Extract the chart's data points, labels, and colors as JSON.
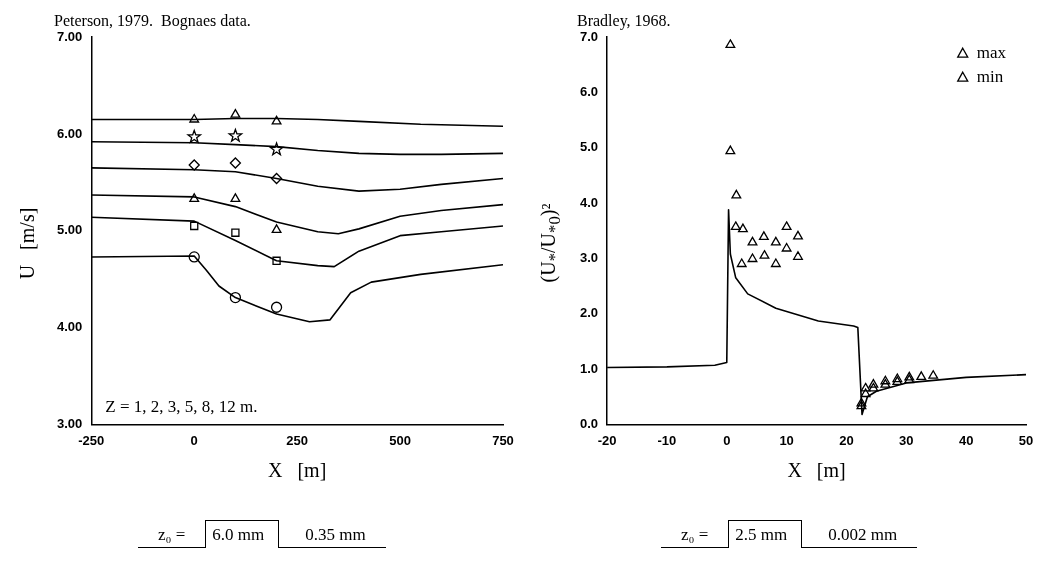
{
  "chart_data": [
    {
      "type": "line",
      "title": "Peterson, 1979.  Bognaes data.",
      "xlabel": "X   [m]",
      "ylabel": "U   [m/s]",
      "xlim": [
        -250,
        750
      ],
      "xticks": [
        -250,
        0,
        250,
        500,
        750
      ],
      "ylim": [
        3,
        7
      ],
      "yticks": [
        {
          "value": 3,
          "label": "3.00"
        },
        {
          "value": 4,
          "label": "4.00"
        },
        {
          "value": 5,
          "label": "5.00"
        },
        {
          "value": 6,
          "label": "6.00"
        },
        {
          "value": 7,
          "label": "7.00"
        }
      ],
      "grid": false,
      "legend": false,
      "annotations": [
        "Z = 1, 2, 3, 5, 8, 12 m.",
        "z₀ =",
        "6.0 mm",
        "0.35 mm"
      ],
      "series": [
        {
          "type": "line",
          "color": "#000000",
          "marker": "none",
          "x": [
            -250,
            0,
            100,
            200,
            300,
            400,
            550,
            750
          ],
          "values": [
            6.15,
            6.15,
            6.16,
            6.16,
            6.15,
            6.13,
            6.1,
            6.08
          ]
        },
        {
          "type": "line",
          "color": "#000000",
          "marker": "none",
          "x": [
            -250,
            0,
            100,
            200,
            300,
            400,
            500,
            600,
            750
          ],
          "values": [
            5.92,
            5.91,
            5.89,
            5.87,
            5.83,
            5.8,
            5.79,
            5.79,
            5.8
          ]
        },
        {
          "type": "line",
          "color": "#000000",
          "marker": "none",
          "x": [
            -250,
            0,
            100,
            200,
            300,
            400,
            500,
            600,
            750
          ],
          "values": [
            5.65,
            5.63,
            5.61,
            5.54,
            5.46,
            5.41,
            5.43,
            5.48,
            5.54
          ]
        },
        {
          "type": "line",
          "color": "#000000",
          "marker": "none",
          "x": [
            -250,
            0,
            100,
            200,
            300,
            350,
            400,
            500,
            600,
            750
          ],
          "values": [
            5.37,
            5.35,
            5.25,
            5.09,
            4.99,
            4.97,
            5.02,
            5.15,
            5.21,
            5.27
          ]
        },
        {
          "type": "line",
          "color": "#000000",
          "marker": "none",
          "x": [
            -250,
            0,
            100,
            200,
            300,
            340,
            400,
            500,
            600,
            750
          ],
          "values": [
            5.14,
            5.1,
            4.9,
            4.69,
            4.64,
            4.63,
            4.79,
            4.95,
            4.99,
            5.05
          ]
        },
        {
          "type": "line",
          "color": "#000000",
          "marker": "none",
          "x": [
            -250,
            0,
            30,
            60,
            100,
            200,
            280,
            330,
            380,
            430,
            550,
            750
          ],
          "values": [
            4.73,
            4.74,
            4.59,
            4.43,
            4.31,
            4.14,
            4.06,
            4.08,
            4.36,
            4.47,
            4.55,
            4.65
          ]
        },
        {
          "type": "scatter",
          "color": "#000000",
          "marker": "triangle",
          "x": [
            0,
            100,
            200
          ],
          "values": [
            6.15,
            6.2,
            6.13
          ]
        },
        {
          "type": "scatter",
          "color": "#000000",
          "marker": "star",
          "x": [
            0,
            100,
            200
          ],
          "values": [
            5.97,
            5.98,
            5.84
          ]
        },
        {
          "type": "scatter",
          "color": "#000000",
          "marker": "diamond",
          "x": [
            0,
            100,
            200
          ],
          "values": [
            5.68,
            5.7,
            5.54
          ]
        },
        {
          "type": "scatter",
          "color": "#000000",
          "marker": "triangle",
          "x": [
            0,
            100,
            200
          ],
          "values": [
            5.33,
            5.33,
            5.01
          ]
        },
        {
          "type": "scatter",
          "color": "#000000",
          "marker": "square",
          "x": [
            0,
            100,
            200
          ],
          "values": [
            5.05,
            4.98,
            4.69
          ]
        },
        {
          "type": "scatter",
          "color": "#000000",
          "marker": "circle",
          "x": [
            0,
            100,
            200
          ],
          "values": [
            4.73,
            4.31,
            4.21
          ]
        }
      ]
    },
    {
      "type": "line",
      "title": "Bradley, 1968.",
      "xlabel": "X   [m]",
      "ylabel": "(U$_{*}$/U$_{*0}$)²",
      "xlim": [
        -20,
        50
      ],
      "xticks": [
        -20,
        -10,
        0,
        10,
        20,
        30,
        40,
        50
      ],
      "ylim": [
        0,
        7
      ],
      "yticks": [
        {
          "value": 0,
          "label": "0.0"
        },
        {
          "value": 1,
          "label": "1.0"
        },
        {
          "value": 2,
          "label": "2.0"
        },
        {
          "value": 3,
          "label": "3.0"
        },
        {
          "value": 4,
          "label": "4.0"
        },
        {
          "value": 5,
          "label": "5.0"
        },
        {
          "value": 6,
          "label": "6.0"
        },
        {
          "value": 7,
          "label": "7.0"
        }
      ],
      "grid": false,
      "legend": "top right",
      "annotations": [
        "z₀ =",
        "2.5 mm",
        "0.002 mm"
      ],
      "series": [
        {
          "type": "line",
          "color": "#000000",
          "marker": "none",
          "x": [
            -20,
            -10,
            -2,
            0,
            0.3,
            0.6,
            1.5,
            3.5,
            8.2,
            15.3,
            21.2,
            21.9,
            22.6,
            23.5,
            25,
            30,
            40,
            50
          ],
          "values": [
            1.03,
            1.04,
            1.07,
            1.12,
            3.88,
            3.08,
            2.65,
            2.36,
            2.1,
            1.87,
            1.78,
            1.75,
            0.18,
            0.5,
            0.6,
            0.75,
            0.85,
            0.9
          ]
        },
        {
          "type": "scatter",
          "name": "max",
          "color": "#000000",
          "marker": "triangle",
          "x": [
            0.6,
            1.6,
            2.7,
            4.3,
            6.2,
            8.2,
            10.0,
            11.9,
            22.5,
            23.2,
            24.5,
            26.5,
            28.5,
            30.5,
            32.5,
            34.5
          ],
          "values": [
            6.86,
            4.14,
            3.53,
            3.29,
            3.39,
            3.29,
            3.57,
            3.4,
            0.38,
            0.65,
            0.72,
            0.78,
            0.82,
            0.85,
            0.86,
            0.88
          ]
        },
        {
          "type": "scatter",
          "name": "min",
          "color": "#000000",
          "marker": "triangle",
          "x": [
            0.6,
            1.5,
            2.5,
            4.3,
            6.3,
            8.2,
            10.0,
            11.9,
            22.5,
            23.2,
            24.5,
            26.5,
            28.5,
            30.5
          ],
          "values": [
            4.94,
            3.57,
            2.9,
            2.99,
            3.05,
            2.9,
            3.18,
            3.03,
            0.33,
            0.55,
            0.65,
            0.72,
            0.77,
            0.8
          ]
        }
      ]
    }
  ]
}
